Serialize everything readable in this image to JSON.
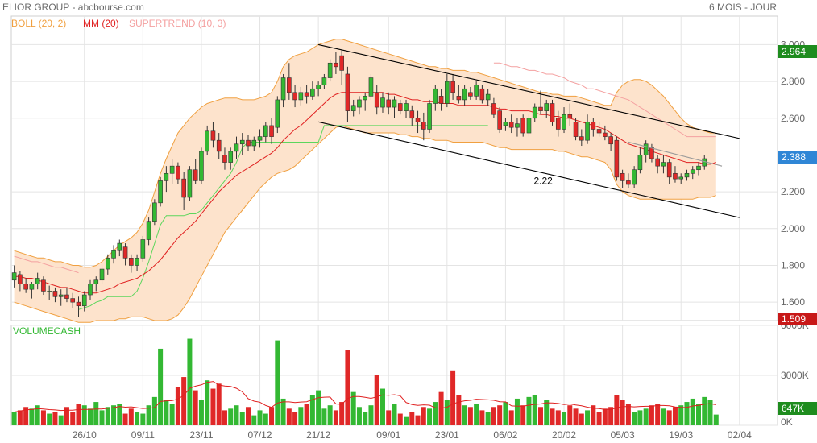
{
  "header": {
    "title": "ELIOR GROUP - abcbourse.com",
    "period": "6 MOIS - JOUR"
  },
  "legend": [
    {
      "label": "BOLL (20, 2)",
      "color": "#f0a040"
    },
    {
      "label": "MM (20)",
      "color": "#e02020"
    },
    {
      "label": "SUPERTREND (10, 3)",
      "color": "#f4a0a0"
    }
  ],
  "volume_label": "VOLUMECASH",
  "price_tags": [
    {
      "label": "2.964",
      "value": 2.964,
      "color": "#1e8c1e"
    },
    {
      "label": "2.388",
      "value": 2.388,
      "color": "#2f86d6"
    },
    {
      "label": "1.509",
      "value": 1.509,
      "color": "#c81818"
    }
  ],
  "volume_tag": {
    "label": "647K",
    "value": 647,
    "color": "#1e8c1e"
  },
  "annotation": {
    "label": "2.22",
    "value": 2.22
  },
  "colors": {
    "up": "#33b833",
    "down": "#e02828",
    "band_fill": "#fde3cc",
    "band_line": "#f0a040",
    "ma": "#e02020",
    "supertrend_up": "#5cd65c",
    "supertrend_down": "#f4a0a0",
    "grid": "#e4e4e4",
    "trendline": "#000000"
  },
  "chart_data": {
    "type": "candlestick",
    "price_axis": {
      "min": 1.5,
      "max": 3.05,
      "ticks": [
        "3.000",
        "2.800",
        "2.600",
        "2.400",
        "2.200",
        "2.000",
        "1.800",
        "1.600"
      ],
      "tick_values": [
        3.0,
        2.8,
        2.6,
        2.4,
        2.2,
        2.0,
        1.8,
        1.6
      ]
    },
    "volume_axis": {
      "min": 0,
      "max": 6000,
      "ticks": [
        "6000K",
        "3000K",
        "0K"
      ],
      "tick_values": [
        6000,
        3000,
        0
      ]
    },
    "x_ticks": [
      {
        "label": "26/10",
        "index": 12
      },
      {
        "label": "09/11",
        "index": 22
      },
      {
        "label": "23/11",
        "index": 32
      },
      {
        "label": "07/12",
        "index": 42
      },
      {
        "label": "21/12",
        "index": 52
      },
      {
        "label": "09/01",
        "index": 64
      },
      {
        "label": "23/01",
        "index": 74
      },
      {
        "label": "06/02",
        "index": 84
      },
      {
        "label": "20/02",
        "index": 94
      },
      {
        "label": "05/03",
        "index": 104
      },
      {
        "label": "19/03",
        "index": 114
      },
      {
        "label": "02/04",
        "index": 124
      }
    ],
    "ohlc": [
      [
        1.72,
        1.8,
        1.68,
        1.76
      ],
      [
        1.75,
        1.77,
        1.66,
        1.7
      ],
      [
        1.7,
        1.73,
        1.65,
        1.67
      ],
      [
        1.67,
        1.71,
        1.62,
        1.7
      ],
      [
        1.7,
        1.76,
        1.67,
        1.73
      ],
      [
        1.72,
        1.74,
        1.64,
        1.66
      ],
      [
        1.66,
        1.69,
        1.61,
        1.66
      ],
      [
        1.66,
        1.68,
        1.6,
        1.63
      ],
      [
        1.63,
        1.67,
        1.58,
        1.64
      ],
      [
        1.64,
        1.68,
        1.6,
        1.62
      ],
      [
        1.62,
        1.65,
        1.57,
        1.6
      ],
      [
        1.6,
        1.63,
        1.52,
        1.58
      ],
      [
        1.58,
        1.66,
        1.55,
        1.64
      ],
      [
        1.64,
        1.72,
        1.61,
        1.7
      ],
      [
        1.7,
        1.74,
        1.66,
        1.72
      ],
      [
        1.72,
        1.8,
        1.7,
        1.78
      ],
      [
        1.78,
        1.86,
        1.75,
        1.84
      ],
      [
        1.84,
        1.91,
        1.81,
        1.88
      ],
      [
        1.88,
        1.94,
        1.85,
        1.92
      ],
      [
        1.9,
        1.92,
        1.8,
        1.84
      ],
      [
        1.84,
        1.86,
        1.76,
        1.8
      ],
      [
        1.8,
        1.86,
        1.77,
        1.84
      ],
      [
        1.84,
        1.96,
        1.82,
        1.94
      ],
      [
        1.94,
        2.06,
        1.91,
        2.04
      ],
      [
        2.04,
        2.16,
        2.02,
        2.14
      ],
      [
        2.14,
        2.28,
        2.12,
        2.26
      ],
      [
        2.26,
        2.34,
        2.2,
        2.3
      ],
      [
        2.3,
        2.38,
        2.24,
        2.34
      ],
      [
        2.34,
        2.36,
        2.24,
        2.27
      ],
      [
        2.27,
        2.31,
        2.1,
        2.17
      ],
      [
        2.17,
        2.34,
        2.15,
        2.32
      ],
      [
        2.32,
        2.38,
        2.24,
        2.26
      ],
      [
        2.26,
        2.44,
        2.24,
        2.42
      ],
      [
        2.42,
        2.56,
        2.4,
        2.53
      ],
      [
        2.53,
        2.58,
        2.44,
        2.48
      ],
      [
        2.48,
        2.52,
        2.38,
        2.42
      ],
      [
        2.4,
        2.44,
        2.32,
        2.36
      ],
      [
        2.36,
        2.44,
        2.32,
        2.42
      ],
      [
        2.42,
        2.5,
        2.38,
        2.46
      ],
      [
        2.46,
        2.52,
        2.4,
        2.48
      ],
      [
        2.48,
        2.51,
        2.42,
        2.45
      ],
      [
        2.45,
        2.5,
        2.42,
        2.48
      ],
      [
        2.48,
        2.54,
        2.44,
        2.5
      ],
      [
        2.5,
        2.58,
        2.47,
        2.56
      ],
      [
        2.56,
        2.6,
        2.46,
        2.5
      ],
      [
        2.55,
        2.72,
        2.52,
        2.7
      ],
      [
        2.7,
        2.84,
        2.66,
        2.82
      ],
      [
        2.82,
        2.9,
        2.7,
        2.74
      ],
      [
        2.74,
        2.78,
        2.66,
        2.7
      ],
      [
        2.7,
        2.77,
        2.67,
        2.74
      ],
      [
        2.74,
        2.78,
        2.68,
        2.72
      ],
      [
        2.72,
        2.8,
        2.7,
        2.76
      ],
      [
        2.76,
        2.8,
        2.72,
        2.78
      ],
      [
        2.78,
        2.84,
        2.76,
        2.82
      ],
      [
        2.82,
        2.92,
        2.8,
        2.9
      ],
      [
        2.9,
        2.96,
        2.84,
        2.88
      ],
      [
        2.94,
        2.97,
        2.78,
        2.86
      ],
      [
        2.84,
        2.88,
        2.58,
        2.64
      ],
      [
        2.64,
        2.7,
        2.61,
        2.67
      ],
      [
        2.66,
        2.72,
        2.62,
        2.7
      ],
      [
        2.7,
        2.74,
        2.64,
        2.72
      ],
      [
        2.72,
        2.84,
        2.7,
        2.82
      ],
      [
        2.74,
        2.78,
        2.62,
        2.66
      ],
      [
        2.66,
        2.74,
        2.63,
        2.71
      ],
      [
        2.7,
        2.74,
        2.62,
        2.66
      ],
      [
        2.66,
        2.72,
        2.6,
        2.7
      ],
      [
        2.68,
        2.7,
        2.62,
        2.64
      ],
      [
        2.64,
        2.7,
        2.6,
        2.68
      ],
      [
        2.64,
        2.67,
        2.56,
        2.6
      ],
      [
        2.6,
        2.64,
        2.52,
        2.58
      ],
      [
        2.58,
        2.63,
        2.48,
        2.54
      ],
      [
        2.54,
        2.7,
        2.52,
        2.68
      ],
      [
        2.68,
        2.78,
        2.64,
        2.76
      ],
      [
        2.72,
        2.76,
        2.64,
        2.68
      ],
      [
        2.68,
        2.84,
        2.66,
        2.8
      ],
      [
        2.8,
        2.84,
        2.7,
        2.74
      ],
      [
        2.72,
        2.78,
        2.68,
        2.7
      ],
      [
        2.7,
        2.78,
        2.67,
        2.76
      ],
      [
        2.74,
        2.77,
        2.7,
        2.72
      ],
      [
        2.72,
        2.8,
        2.7,
        2.78
      ],
      [
        2.76,
        2.78,
        2.68,
        2.7
      ],
      [
        2.7,
        2.76,
        2.67,
        2.73
      ],
      [
        2.68,
        2.71,
        2.6,
        2.62
      ],
      [
        2.64,
        2.66,
        2.52,
        2.54
      ],
      [
        2.56,
        2.6,
        2.53,
        2.58
      ],
      [
        2.58,
        2.62,
        2.52,
        2.55
      ],
      [
        2.55,
        2.6,
        2.5,
        2.57
      ],
      [
        2.6,
        2.62,
        2.5,
        2.52
      ],
      [
        2.52,
        2.62,
        2.5,
        2.6
      ],
      [
        2.6,
        2.68,
        2.58,
        2.66
      ],
      [
        2.66,
        2.75,
        2.62,
        2.64
      ],
      [
        2.64,
        2.7,
        2.6,
        2.68
      ],
      [
        2.68,
        2.7,
        2.56,
        2.58
      ],
      [
        2.6,
        2.64,
        2.5,
        2.54
      ],
      [
        2.54,
        2.66,
        2.52,
        2.62
      ],
      [
        2.62,
        2.68,
        2.56,
        2.6
      ],
      [
        2.58,
        2.6,
        2.48,
        2.5
      ],
      [
        2.5,
        2.54,
        2.45,
        2.48
      ],
      [
        2.48,
        2.62,
        2.46,
        2.58
      ],
      [
        2.58,
        2.6,
        2.5,
        2.54
      ],
      [
        2.54,
        2.58,
        2.5,
        2.52
      ],
      [
        2.52,
        2.56,
        2.48,
        2.5
      ],
      [
        2.5,
        2.52,
        2.42,
        2.46
      ],
      [
        2.48,
        2.5,
        2.26,
        2.28
      ],
      [
        2.3,
        2.32,
        2.22,
        2.26
      ],
      [
        2.26,
        2.3,
        2.22,
        2.24
      ],
      [
        2.24,
        2.34,
        2.22,
        2.32
      ],
      [
        2.32,
        2.44,
        2.3,
        2.4
      ],
      [
        2.4,
        2.48,
        2.36,
        2.46
      ],
      [
        2.44,
        2.46,
        2.36,
        2.38
      ],
      [
        2.38,
        2.4,
        2.3,
        2.34
      ],
      [
        2.34,
        2.4,
        2.3,
        2.36
      ],
      [
        2.36,
        2.38,
        2.24,
        2.28
      ],
      [
        2.3,
        2.34,
        2.25,
        2.27
      ],
      [
        2.27,
        2.3,
        2.24,
        2.28
      ],
      [
        2.28,
        2.32,
        2.26,
        2.3
      ],
      [
        2.3,
        2.34,
        2.27,
        2.32
      ],
      [
        2.32,
        2.36,
        2.29,
        2.34
      ],
      [
        2.34,
        2.4,
        2.32,
        2.38
      ]
    ],
    "volume": [
      800,
      900,
      1100,
      1000,
      1200,
      900,
      700,
      800,
      600,
      1100,
      800,
      1300,
      1200,
      1000,
      1400,
      900,
      1100,
      1200,
      1300,
      700,
      1000,
      800,
      700,
      1200,
      1700,
      4600,
      1500,
      1300,
      2300,
      2900,
      5200,
      2100,
      1500,
      2700,
      2200,
      2500,
      900,
      1000,
      1200,
      800,
      1100,
      600,
      900,
      700,
      1100,
      5100,
      1600,
      1000,
      800,
      1100,
      1300,
      1800,
      2100,
      1000,
      1200,
      900,
      1400,
      4500,
      2000,
      1100,
      800,
      1200,
      3000,
      2200,
      900,
      1300,
      700,
      500,
      800,
      600,
      1100,
      1000,
      1400,
      2000,
      1500,
      3300,
      1800,
      1200,
      1100,
      1300,
      900,
      800,
      1100,
      1200,
      1400,
      900,
      1600,
      1200,
      1700,
      1800,
      1100,
      1500,
      1000,
      900,
      800,
      1200,
      1000,
      700,
      900,
      1200,
      800,
      1000,
      1100,
      1800,
      1500,
      1300,
      800,
      900,
      1000,
      1200,
      1300,
      1000,
      900,
      1100,
      1200,
      1400,
      1600,
      1300,
      1700,
      1500,
      647
    ],
    "bollinger_upper": [
      1.88,
      1.87,
      1.86,
      1.85,
      1.84,
      1.84,
      1.83,
      1.82,
      1.82,
      1.81,
      1.8,
      1.8,
      1.79,
      1.79,
      1.8,
      1.82,
      1.85,
      1.88,
      1.91,
      1.93,
      1.95,
      1.98,
      2.03,
      2.1,
      2.2,
      2.3,
      2.38,
      2.45,
      2.52,
      2.56,
      2.6,
      2.63,
      2.66,
      2.68,
      2.69,
      2.7,
      2.71,
      2.71,
      2.71,
      2.7,
      2.7,
      2.7,
      2.71,
      2.72,
      2.74,
      2.8,
      2.88,
      2.92,
      2.94,
      2.95,
      2.96,
      2.98,
      3.0,
      3.01,
      3.02,
      3.03,
      3.03,
      3.02,
      3.01,
      3.0,
      2.99,
      2.98,
      2.97,
      2.96,
      2.95,
      2.94,
      2.93,
      2.92,
      2.91,
      2.9,
      2.89,
      2.88,
      2.88,
      2.87,
      2.87,
      2.86,
      2.86,
      2.86,
      2.85,
      2.85,
      2.84,
      2.83,
      2.82,
      2.81,
      2.8,
      2.79,
      2.78,
      2.77,
      2.76,
      2.75,
      2.74,
      2.74,
      2.73,
      2.73,
      2.72,
      2.72,
      2.72,
      2.71,
      2.7,
      2.69,
      2.68,
      2.67,
      2.67,
      2.74,
      2.78,
      2.8,
      2.81,
      2.81,
      2.8,
      2.78,
      2.75,
      2.72,
      2.68,
      2.64,
      2.6,
      2.57,
      2.55,
      2.54,
      2.53,
      2.52,
      2.52
    ],
    "bollinger_lower": [
      1.6,
      1.59,
      1.58,
      1.57,
      1.56,
      1.55,
      1.54,
      1.53,
      1.52,
      1.51,
      1.5,
      1.49,
      1.49,
      1.49,
      1.5,
      1.5,
      1.5,
      1.5,
      1.51,
      1.51,
      1.52,
      1.52,
      1.52,
      1.51,
      1.5,
      1.5,
      1.5,
      1.51,
      1.53,
      1.57,
      1.62,
      1.68,
      1.74,
      1.8,
      1.86,
      1.92,
      1.98,
      2.02,
      2.06,
      2.1,
      2.14,
      2.18,
      2.22,
      2.25,
      2.28,
      2.3,
      2.31,
      2.32,
      2.34,
      2.37,
      2.4,
      2.43,
      2.46,
      2.49,
      2.52,
      2.55,
      2.56,
      2.55,
      2.54,
      2.53,
      2.52,
      2.52,
      2.52,
      2.52,
      2.52,
      2.52,
      2.51,
      2.51,
      2.5,
      2.5,
      2.49,
      2.49,
      2.48,
      2.48,
      2.48,
      2.47,
      2.47,
      2.47,
      2.47,
      2.47,
      2.47,
      2.46,
      2.45,
      2.44,
      2.44,
      2.43,
      2.43,
      2.43,
      2.43,
      2.43,
      2.43,
      2.43,
      2.43,
      2.42,
      2.42,
      2.41,
      2.4,
      2.39,
      2.39,
      2.38,
      2.37,
      2.36,
      2.32,
      2.24,
      2.2,
      2.18,
      2.17,
      2.16,
      2.16,
      2.16,
      2.16,
      2.16,
      2.16,
      2.16,
      2.16,
      2.16,
      2.16,
      2.17,
      2.17,
      2.17,
      2.18
    ],
    "moving_average": [
      1.74,
      1.74,
      1.73,
      1.73,
      1.72,
      1.71,
      1.7,
      1.69,
      1.68,
      1.68,
      1.67,
      1.66,
      1.65,
      1.65,
      1.65,
      1.66,
      1.67,
      1.68,
      1.7,
      1.71,
      1.72,
      1.73,
      1.75,
      1.77,
      1.8,
      1.83,
      1.87,
      1.91,
      1.95,
      1.98,
      2.01,
      2.04,
      2.08,
      2.12,
      2.16,
      2.2,
      2.23,
      2.26,
      2.29,
      2.31,
      2.33,
      2.35,
      2.37,
      2.39,
      2.41,
      2.44,
      2.48,
      2.51,
      2.54,
      2.56,
      2.59,
      2.62,
      2.65,
      2.68,
      2.71,
      2.73,
      2.74,
      2.74,
      2.74,
      2.74,
      2.74,
      2.74,
      2.74,
      2.74,
      2.73,
      2.73,
      2.72,
      2.71,
      2.7,
      2.7,
      2.69,
      2.69,
      2.69,
      2.68,
      2.68,
      2.68,
      2.67,
      2.67,
      2.67,
      2.67,
      2.67,
      2.67,
      2.66,
      2.65,
      2.65,
      2.64,
      2.64,
      2.64,
      2.64,
      2.63,
      2.62,
      2.62,
      2.61,
      2.61,
      2.6,
      2.6,
      2.59,
      2.58,
      2.57,
      2.56,
      2.55,
      2.54,
      2.52,
      2.5,
      2.48,
      2.46,
      2.45,
      2.44,
      2.43,
      2.42,
      2.41,
      2.4,
      2.39,
      2.38,
      2.37,
      2.36,
      2.36,
      2.36,
      2.35,
      2.35,
      2.36
    ],
    "supertrend": {
      "up_start": 11,
      "up_end": 81,
      "up_line": [
        1.56,
        1.57,
        1.58,
        1.6,
        1.61,
        1.63,
        1.63,
        1.63,
        1.63,
        1.63,
        1.66,
        1.73,
        1.82,
        1.92,
        2.02,
        2.07,
        2.07,
        2.07,
        2.07,
        2.08,
        2.08,
        2.1,
        2.14,
        2.18,
        2.22,
        2.26,
        2.3,
        2.36,
        2.44,
        2.47,
        2.47,
        2.47,
        2.47,
        2.47,
        2.47,
        2.47,
        2.47,
        2.47,
        2.47,
        2.47,
        2.47,
        2.47,
        2.56,
        2.56,
        2.56,
        2.56,
        2.56,
        2.56,
        2.56,
        2.56,
        2.56,
        2.56,
        2.56,
        2.56,
        2.56,
        2.56,
        2.56,
        2.56,
        2.56,
        2.56,
        2.56,
        2.56,
        2.56,
        2.56,
        2.56,
        2.56,
        2.56,
        2.56,
        2.56,
        2.56,
        2.56
      ],
      "down_start": 0,
      "down_end": 11,
      "down_line": [
        1.85,
        1.84,
        1.83,
        1.82,
        1.82,
        1.81,
        1.8,
        1.79,
        1.79,
        1.78,
        1.77,
        1.76
      ],
      "down2_start": 82,
      "down2_end": 120,
      "down2_line": [
        2.9,
        2.9,
        2.89,
        2.88,
        2.88,
        2.87,
        2.86,
        2.86,
        2.85,
        2.84,
        2.84,
        2.83,
        2.82,
        2.8,
        2.79,
        2.78,
        2.76,
        2.76,
        2.75,
        2.74,
        2.73,
        2.72,
        2.71,
        2.7,
        2.68,
        2.66,
        2.64,
        2.62,
        2.6,
        2.58,
        2.56,
        2.54,
        2.52,
        2.5,
        2.5,
        2.5,
        2.5,
        2.5,
        2.5
      ]
    },
    "trendlines": [
      {
        "from": [
          52,
          3.0
        ],
        "to": [
          124,
          2.49
        ]
      },
      {
        "from": [
          52,
          2.58
        ],
        "to": [
          124,
          2.06
        ]
      },
      {
        "from": [
          105,
          2.47
        ],
        "to": [
          121,
          2.34
        ]
      }
    ],
    "hline": {
      "value": 2.22,
      "from_index": 88
    }
  }
}
